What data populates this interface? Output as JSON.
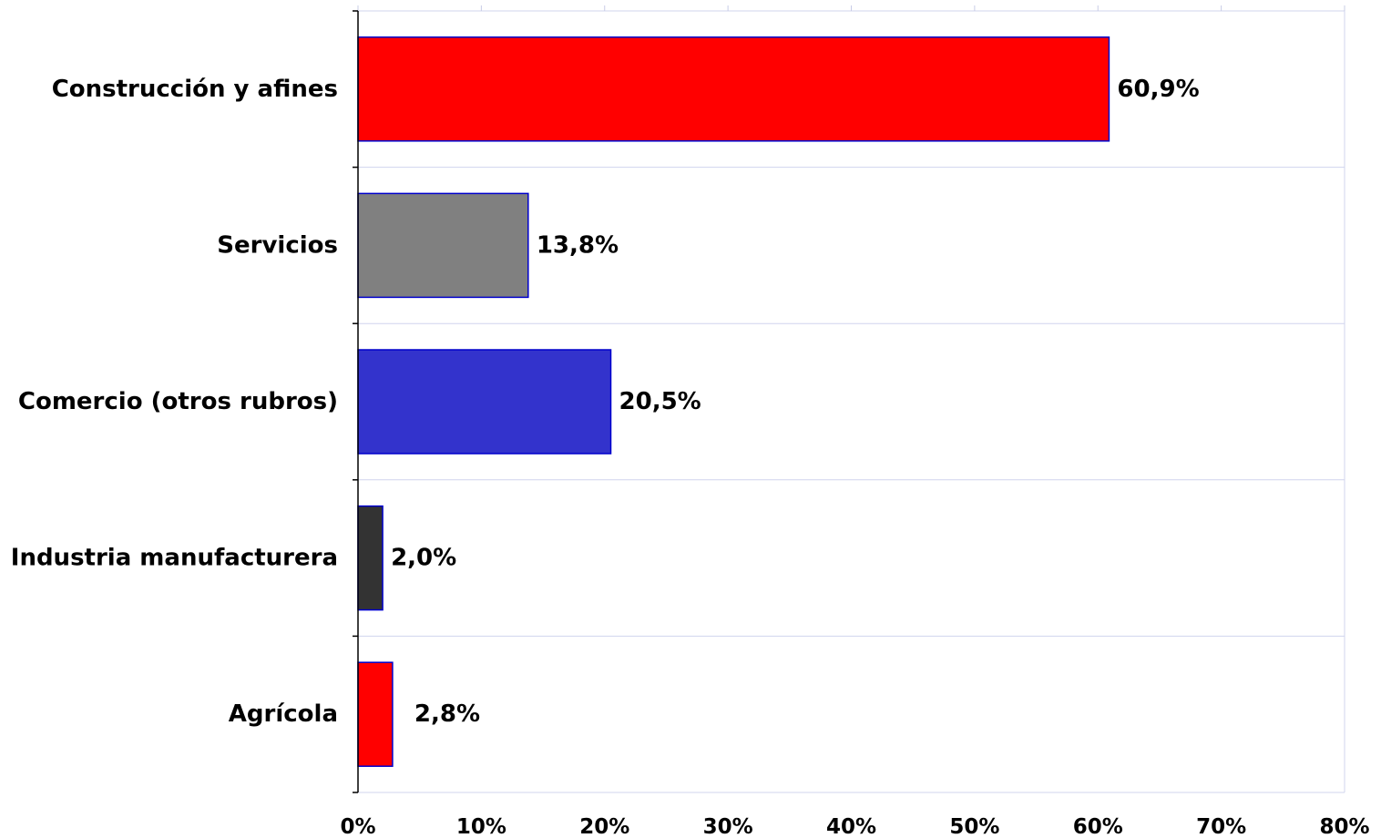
{
  "chart_data": {
    "type": "bar",
    "orientation": "horizontal",
    "title": "",
    "xlabel": "",
    "ylabel": "",
    "xlim": [
      0,
      80
    ],
    "grid": true,
    "legend": "none",
    "categories": [
      "Construcción y afines",
      "Servicios",
      "Comercio (otros rubros)",
      "Industria manufacturera",
      "Agrícola"
    ],
    "values": [
      60.9,
      13.8,
      20.5,
      2.0,
      2.8
    ],
    "value_labels": [
      "60,9%",
      "13,8%",
      "20,5%",
      "2,0%",
      "2,8%"
    ],
    "bar_colors": [
      "#ff0000",
      "#808080",
      "#3333cc",
      "#333333",
      "#ff0000"
    ],
    "bar_outline_color": "#0000cc",
    "x_ticks": [
      0,
      10,
      20,
      30,
      40,
      50,
      60,
      70,
      80
    ],
    "x_tick_labels": [
      "0%",
      "10%",
      "20%",
      "30%",
      "40%",
      "50%",
      "60%",
      "70%",
      "80%"
    ]
  }
}
